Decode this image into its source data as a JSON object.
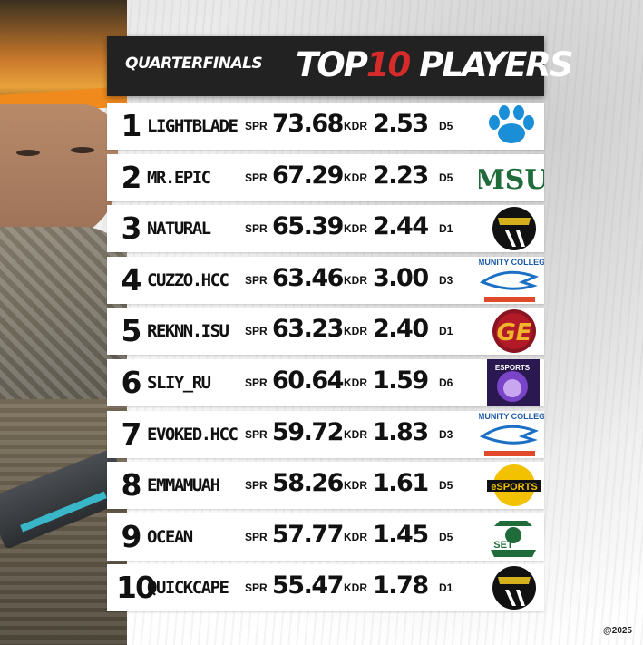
{
  "header": {
    "subtitle": "QUARTERFINALS",
    "title_prefix": "TOP",
    "title_number": "10",
    "title_suffix": "PLAYERS"
  },
  "labels": {
    "spr": "SPR",
    "kdr": "KDR"
  },
  "players": [
    {
      "rank": "1",
      "name": "LIGHTBLADE",
      "spr": "73.68",
      "kdr": "2.53",
      "division": "D5",
      "logo": "paw-icon"
    },
    {
      "rank": "2",
      "name": "MR.EPIC",
      "spr": "67.29",
      "kdr": "2.23",
      "division": "D5",
      "logo": "msu-logo",
      "logo_text": "MSU"
    },
    {
      "rank": "3",
      "name": "NATURAL",
      "spr": "65.39",
      "kdr": "2.44",
      "division": "D1",
      "logo": "black-helmet-logo"
    },
    {
      "rank": "4",
      "name": "CUZZO.HCC",
      "spr": "63.46",
      "kdr": "3.00",
      "division": "D3",
      "logo": "hawk-logo",
      "logo_text": "MUNITY COLLEG"
    },
    {
      "rank": "5",
      "name": "REKNN.ISU",
      "spr": "63.23",
      "kdr": "2.40",
      "division": "D1",
      "logo": "ge-logo",
      "logo_text": "GE"
    },
    {
      "rank": "6",
      "name": "SLIY_RU",
      "spr": "60.64",
      "kdr": "1.59",
      "division": "D6",
      "logo": "lion-logo",
      "logo_text": "ESPORTS"
    },
    {
      "rank": "7",
      "name": "EVOKED.HCC",
      "spr": "59.72",
      "kdr": "1.83",
      "division": "D3",
      "logo": "hawk-logo",
      "logo_text": "MUNITY COLLEG"
    },
    {
      "rank": "8",
      "name": "EMMAMUAH",
      "spr": "58.26",
      "kdr": "1.61",
      "division": "D5",
      "logo": "yellow-esports-logo",
      "logo_text": "eSPORTS"
    },
    {
      "rank": "9",
      "name": "OCEAN",
      "spr": "57.77",
      "kdr": "1.45",
      "division": "D5",
      "logo": "green-cowboy-logo",
      "logo_text": "SET"
    },
    {
      "rank": "10",
      "name": "QUICKCAPE",
      "spr": "55.47",
      "kdr": "1.78",
      "division": "D1",
      "logo": "black-helmet-logo"
    }
  ],
  "copyright": "@2025",
  "colors": {
    "header_bg": "#222222",
    "accent": "#d62b2b",
    "row_bg": "#ffffff"
  }
}
